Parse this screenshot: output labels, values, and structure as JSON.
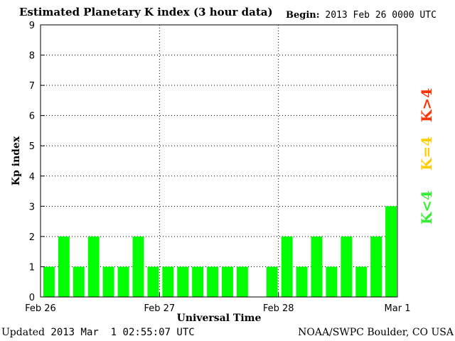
{
  "header": {
    "title": "Estimated Planetary K index (3 hour data)",
    "begin_label": "Begin:",
    "begin_value": "2013 Feb 26 0000 UTC"
  },
  "footer": {
    "updated_label": "Updated",
    "updated_value": "2013 Mar  1 02:55:07 UTC",
    "credit": "NOAA/SWPC Boulder, CO USA"
  },
  "colors": {
    "bar": "#00ff00",
    "legend_below": "#33ee33",
    "legend_equal": "#ffcc00",
    "legend_above": "#ff3300"
  },
  "legend": {
    "above": "K>4",
    "equal": "K=4",
    "below": "K<4"
  },
  "chart_data": {
    "type": "bar",
    "xlabel": "Universal Time",
    "ylabel": "Kp index",
    "ylim": [
      0,
      9
    ],
    "yticks": [
      0,
      1,
      2,
      3,
      4,
      5,
      6,
      7,
      8,
      9
    ],
    "xticks": [
      "Feb 26",
      "Feb 27",
      "Feb 28",
      "Mar 1"
    ],
    "slots": 24,
    "values": [
      1,
      2,
      1,
      2,
      1,
      1,
      2,
      1,
      1,
      1,
      1,
      1,
      1,
      1,
      null,
      1,
      2,
      1,
      2,
      1,
      2,
      1,
      2,
      3
    ],
    "grid": true
  }
}
